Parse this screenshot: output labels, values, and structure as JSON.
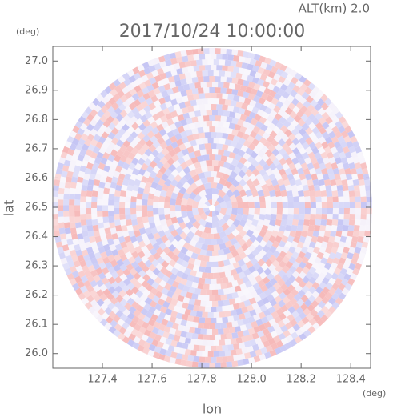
{
  "chart_data": {
    "type": "radar-ppi",
    "title": "2017/10/24 10:00:00",
    "annotation": "ALT(km) 2.0",
    "y_unit": "(deg)",
    "x_unit": "(deg)",
    "xlabel": "lon",
    "ylabel": "lat",
    "xlim": [
      127.2,
      128.48
    ],
    "ylim": [
      25.95,
      27.05
    ],
    "xticks": [
      127.4,
      127.6,
      127.8,
      {
        "value": 128,
        "label": "128.0"
      },
      128.2,
      128.4
    ],
    "yticks": [
      {
        "value": 26,
        "label": "26.0"
      },
      26.1,
      26.2,
      26.3,
      26.4,
      26.5,
      26.6,
      26.7,
      26.8,
      26.9,
      {
        "value": 27,
        "label": "27.0"
      }
    ]
  }
}
